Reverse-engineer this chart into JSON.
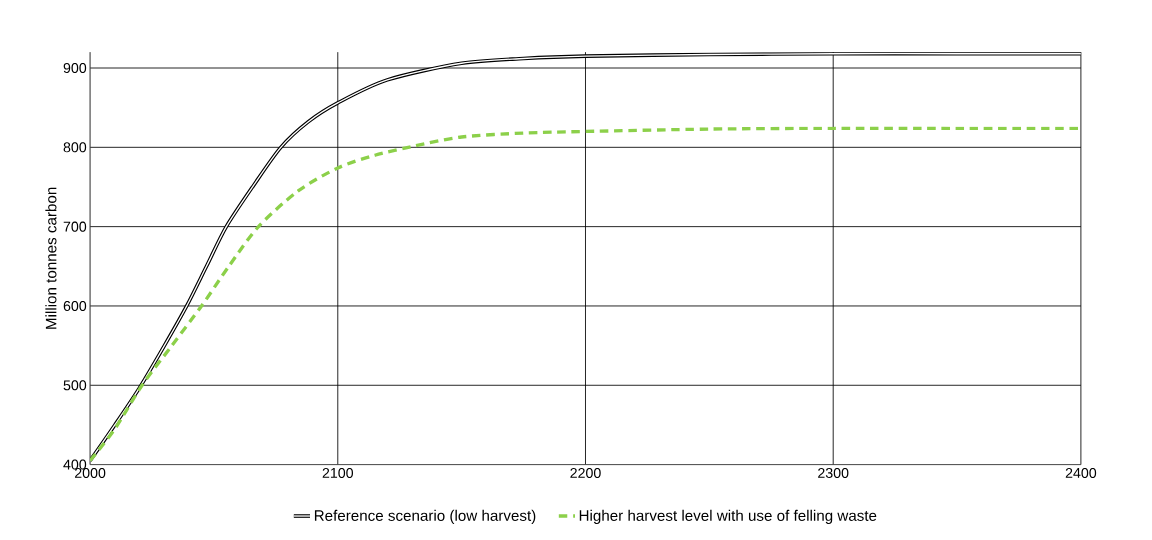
{
  "chart_data": {
    "type": "line",
    "ylabel": "Million tonnes carbon",
    "xlim": [
      2000,
      2400
    ],
    "ylim": [
      400,
      920
    ],
    "xticks": [
      2000,
      2100,
      2200,
      2300,
      2400
    ],
    "yticks": [
      400,
      500,
      600,
      700,
      800,
      900
    ],
    "grid": true,
    "legend": "bottom",
    "marker": "none",
    "series": [
      {
        "name": "Reference scenario (low harvest)",
        "color": "#000000",
        "line_style": "solid",
        "x": [
          2000,
          2010,
          2020,
          2030,
          2039,
          2047,
          2055,
          2066,
          2077,
          2088,
          2100,
          2120,
          2150,
          2175,
          2200,
          2250,
          2300,
          2350,
          2400
        ],
        "values": [
          405,
          450,
          497,
          550,
          600,
          650,
          700,
          752,
          800,
          832,
          856,
          885,
          906,
          912,
          915,
          917,
          918,
          918,
          918
        ]
      },
      {
        "name": "Higher harvest level with use of felling waste",
        "color": "#8cd04a",
        "line_style": "dashed",
        "x": [
          2000,
          2010,
          2021,
          2033,
          2045,
          2056,
          2068,
          2084,
          2100,
          2115,
          2130,
          2150,
          2175,
          2200,
          2250,
          2300,
          2350,
          2400
        ],
        "values": [
          405,
          445,
          500,
          550,
          600,
          650,
          700,
          745,
          774,
          790,
          801,
          813,
          818,
          820,
          823,
          824,
          824,
          824
        ]
      }
    ]
  }
}
